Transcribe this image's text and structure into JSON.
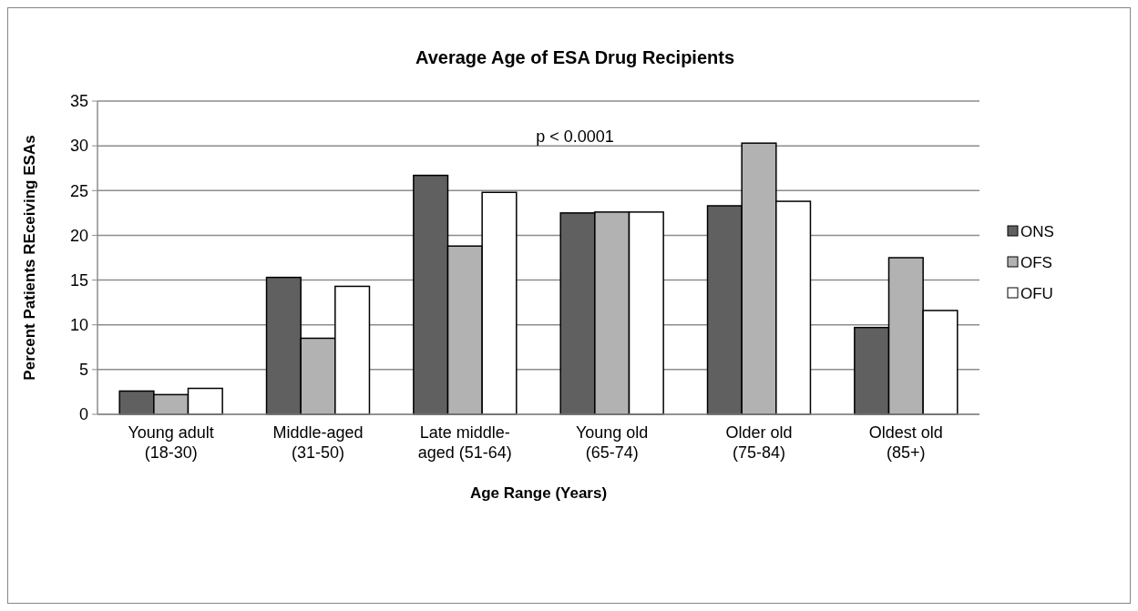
{
  "chart_data": {
    "type": "bar",
    "title": "Average Age of ESA Drug Recipients",
    "xlabel": "Age Range (Years)",
    "ylabel": "Percent Patients REceiving ESAs",
    "categories": [
      "Young adult (18-30)",
      "Middle-aged (31-50)",
      "Late middle-aged (51-64)",
      "Young old (65-74)",
      "Older old (75-84)",
      "Oldest old (85+)"
    ],
    "series": [
      {
        "name": "ONS",
        "color": "#606060",
        "values": [
          2.6,
          15.3,
          26.7,
          22.5,
          23.3,
          9.7
        ]
      },
      {
        "name": "OFS",
        "color": "#b2b2b2",
        "values": [
          2.2,
          8.5,
          18.8,
          22.6,
          30.3,
          17.5
        ]
      },
      {
        "name": "OFU",
        "color": "#ffffff",
        "values": [
          2.9,
          14.3,
          24.8,
          22.6,
          23.8,
          11.6
        ]
      }
    ],
    "ylim": [
      0,
      35
    ],
    "yticks": [
      0,
      5,
      10,
      15,
      20,
      25,
      30,
      35
    ],
    "grid": "y",
    "legend": "right",
    "annotations": [
      "p < 0.0001"
    ]
  }
}
